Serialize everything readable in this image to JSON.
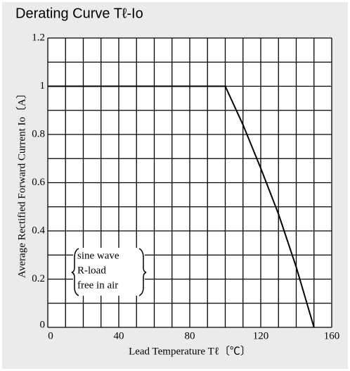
{
  "chart_data": {
    "type": "line",
    "title": "Derating Curve Tℓ-Io",
    "x_label": "Lead Temperature  Tℓ〔℃〕",
    "y_label": "Average Rectified Forward Current Io〔A〕",
    "annotation": [
      "sine wave",
      "R-load",
      "free in air"
    ],
    "x": [
      0,
      100,
      110,
      120,
      130,
      140,
      150
    ],
    "series": [
      {
        "name": "Io",
        "color": "#000000",
        "values": [
          1,
          1,
          0.84,
          0.66,
          0.47,
          0.25,
          0
        ]
      }
    ],
    "xlim": [
      0,
      160
    ],
    "ylim": [
      0,
      1.2
    ],
    "xticks": [
      0,
      40,
      80,
      120,
      160
    ],
    "yticks": [
      0,
      0.2,
      0.4,
      0.6,
      0.8,
      1,
      1.2
    ],
    "xgrid": [
      10,
      20,
      30,
      50,
      60,
      70,
      90,
      100,
      110,
      130,
      140,
      150
    ],
    "ygrid": [
      0.1,
      0.3,
      0.5,
      0.7,
      0.9,
      1.1
    ],
    "grid": true
  }
}
